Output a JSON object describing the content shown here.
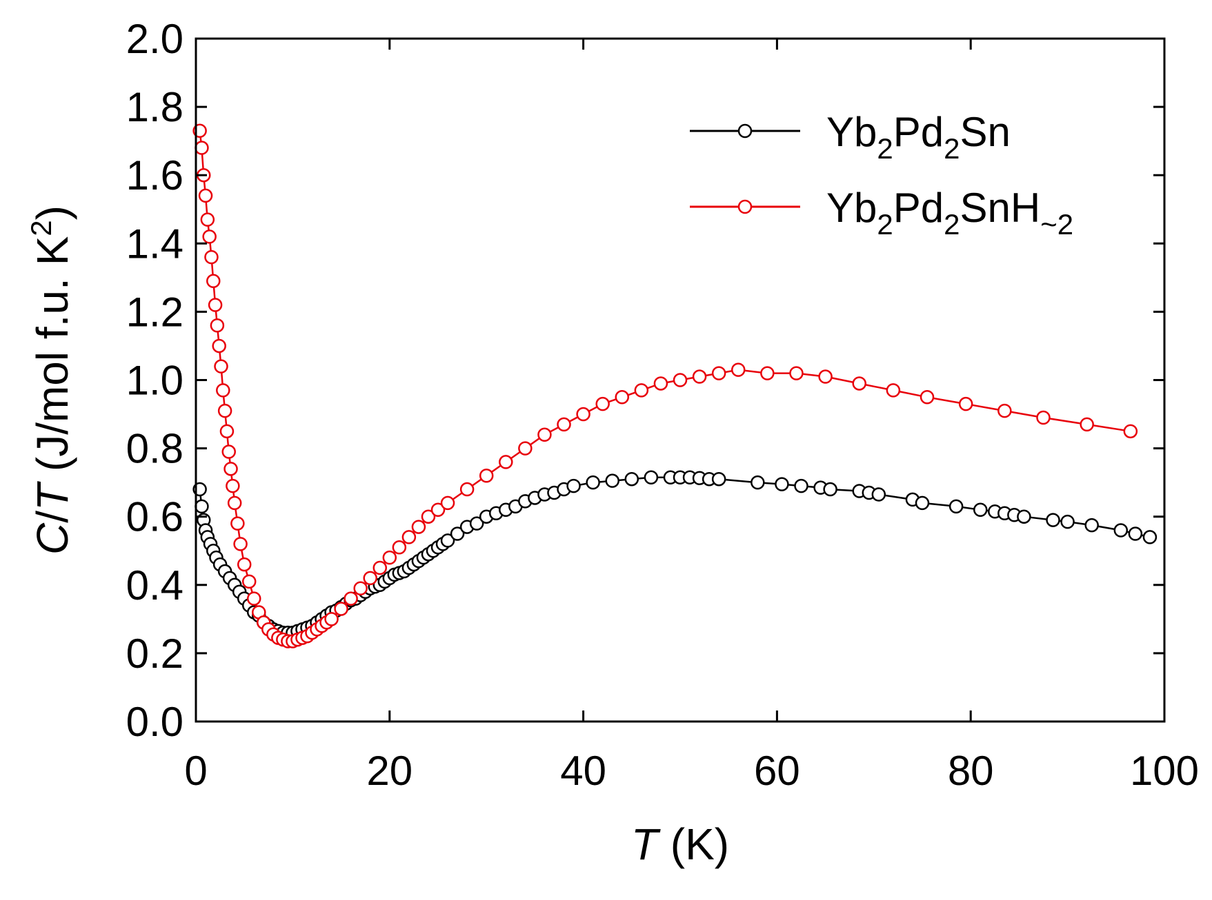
{
  "chart_data": {
    "type": "scatter",
    "title": "",
    "xlabel": {
      "symbol": "T",
      "unit": " (K)"
    },
    "ylabel": {
      "symbol_c": "C",
      "slash": "/",
      "symbol_t": "T",
      "unit_open": " (J/mol f.u. K",
      "unit_sup": "2",
      "unit_close": ")"
    },
    "xlim": [
      0,
      100
    ],
    "ylim": [
      0.0,
      2.0
    ],
    "x_ticks": [
      "0",
      "20",
      "40",
      "60",
      "80",
      "100"
    ],
    "x_tick_values": [
      0,
      20,
      40,
      60,
      80,
      100
    ],
    "y_ticks": [
      "0.0",
      "0.2",
      "0.4",
      "0.6",
      "0.8",
      "1.0",
      "1.2",
      "1.4",
      "1.6",
      "1.8",
      "2.0"
    ],
    "y_tick_values": [
      0.0,
      0.2,
      0.4,
      0.6,
      0.8,
      1.0,
      1.2,
      1.4,
      1.6,
      1.8,
      2.0
    ],
    "grid": false,
    "legend_position": "top-right",
    "series": [
      {
        "name": "Yb2Pd2Sn",
        "legend_parts": [
          {
            "text": "Yb",
            "sub": false
          },
          {
            "text": "2",
            "sub": true
          },
          {
            "text": "Pd",
            "sub": false
          },
          {
            "text": "2",
            "sub": true
          },
          {
            "text": "Sn",
            "sub": false
          }
        ],
        "color": "#000000",
        "marker": "open-circle",
        "x": [
          0.4,
          0.6,
          0.8,
          1.0,
          1.2,
          1.5,
          1.8,
          2.1,
          2.5,
          3.0,
          3.5,
          4.0,
          4.5,
          5.0,
          5.5,
          6.0,
          6.5,
          7.0,
          7.5,
          8.0,
          8.5,
          9.0,
          9.5,
          10.0,
          10.5,
          11.0,
          11.5,
          12.0,
          12.5,
          13.0,
          13.5,
          14.0,
          14.5,
          15.0,
          15.5,
          16.0,
          16.5,
          17.0,
          17.5,
          18.0,
          18.5,
          19.0,
          19.5,
          20.0,
          20.5,
          21.0,
          21.5,
          22.0,
          22.5,
          23.0,
          23.5,
          24.0,
          24.5,
          25.0,
          25.5,
          26.0,
          27.0,
          28.0,
          29.0,
          30.0,
          31.0,
          32.0,
          33.0,
          34.0,
          35.0,
          36.0,
          37.0,
          38.0,
          39.0,
          41.0,
          43.0,
          45.0,
          47.0,
          49.0,
          50.0,
          51.0,
          52.0,
          53.0,
          54.0,
          58.0,
          60.5,
          62.5,
          64.5,
          65.5,
          68.5,
          69.5,
          70.5,
          74.0,
          75.0,
          78.5,
          81.0,
          82.5,
          83.5,
          84.5,
          85.5,
          88.5,
          90.0,
          92.5,
          95.5,
          97.0,
          98.5
        ],
        "y": [
          0.68,
          0.63,
          0.59,
          0.56,
          0.54,
          0.52,
          0.5,
          0.48,
          0.46,
          0.44,
          0.42,
          0.4,
          0.38,
          0.36,
          0.34,
          0.32,
          0.31,
          0.29,
          0.28,
          0.27,
          0.265,
          0.26,
          0.26,
          0.26,
          0.265,
          0.27,
          0.275,
          0.28,
          0.29,
          0.3,
          0.31,
          0.32,
          0.325,
          0.335,
          0.345,
          0.355,
          0.36,
          0.37,
          0.38,
          0.39,
          0.395,
          0.4,
          0.41,
          0.42,
          0.43,
          0.435,
          0.44,
          0.45,
          0.46,
          0.47,
          0.48,
          0.49,
          0.5,
          0.51,
          0.52,
          0.53,
          0.55,
          0.57,
          0.58,
          0.6,
          0.61,
          0.62,
          0.63,
          0.645,
          0.655,
          0.665,
          0.67,
          0.68,
          0.69,
          0.7,
          0.705,
          0.71,
          0.715,
          0.715,
          0.715,
          0.715,
          0.713,
          0.71,
          0.71,
          0.7,
          0.695,
          0.69,
          0.685,
          0.68,
          0.675,
          0.67,
          0.665,
          0.65,
          0.64,
          0.63,
          0.62,
          0.615,
          0.61,
          0.605,
          0.6,
          0.59,
          0.585,
          0.575,
          0.56,
          0.55,
          0.54
        ]
      },
      {
        "name": "Yb2Pd2SnH~2",
        "legend_parts": [
          {
            "text": "Yb",
            "sub": false
          },
          {
            "text": "2",
            "sub": true
          },
          {
            "text": "Pd",
            "sub": false
          },
          {
            "text": "2",
            "sub": true
          },
          {
            "text": "SnH",
            "sub": false
          },
          {
            "text": "~2",
            "sub": true
          }
        ],
        "color": "#e8000a",
        "marker": "open-circle",
        "x": [
          0.4,
          0.6,
          0.8,
          1.0,
          1.2,
          1.4,
          1.6,
          1.8,
          2.0,
          2.2,
          2.4,
          2.6,
          2.8,
          3.0,
          3.2,
          3.4,
          3.6,
          3.8,
          4.0,
          4.3,
          4.6,
          5.0,
          5.5,
          6.0,
          6.5,
          7.0,
          7.5,
          8.0,
          8.5,
          9.0,
          9.5,
          10.0,
          10.5,
          11.0,
          11.5,
          12.0,
          12.5,
          13.0,
          13.5,
          14.0,
          15.0,
          16.0,
          17.0,
          18.0,
          19.0,
          20.0,
          21.0,
          22.0,
          23.0,
          24.0,
          25.0,
          26.0,
          28.0,
          30.0,
          32.0,
          34.0,
          36.0,
          38.0,
          40.0,
          42.0,
          44.0,
          46.0,
          48.0,
          50.0,
          52.0,
          54.0,
          56.0,
          59.0,
          62.0,
          65.0,
          68.5,
          72.0,
          75.5,
          79.5,
          83.5,
          87.5,
          92.0,
          96.5
        ],
        "y": [
          1.73,
          1.68,
          1.6,
          1.54,
          1.47,
          1.42,
          1.36,
          1.29,
          1.22,
          1.16,
          1.1,
          1.04,
          0.97,
          0.91,
          0.85,
          0.79,
          0.74,
          0.69,
          0.64,
          0.58,
          0.52,
          0.46,
          0.41,
          0.36,
          0.32,
          0.29,
          0.27,
          0.255,
          0.245,
          0.24,
          0.235,
          0.235,
          0.24,
          0.245,
          0.25,
          0.26,
          0.27,
          0.28,
          0.29,
          0.3,
          0.33,
          0.36,
          0.39,
          0.42,
          0.45,
          0.48,
          0.51,
          0.54,
          0.57,
          0.6,
          0.62,
          0.64,
          0.68,
          0.72,
          0.76,
          0.8,
          0.84,
          0.87,
          0.9,
          0.93,
          0.95,
          0.97,
          0.99,
          1.0,
          1.01,
          1.02,
          1.03,
          1.02,
          1.02,
          1.01,
          0.99,
          0.97,
          0.95,
          0.93,
          0.91,
          0.89,
          0.87,
          0.85
        ]
      }
    ]
  }
}
